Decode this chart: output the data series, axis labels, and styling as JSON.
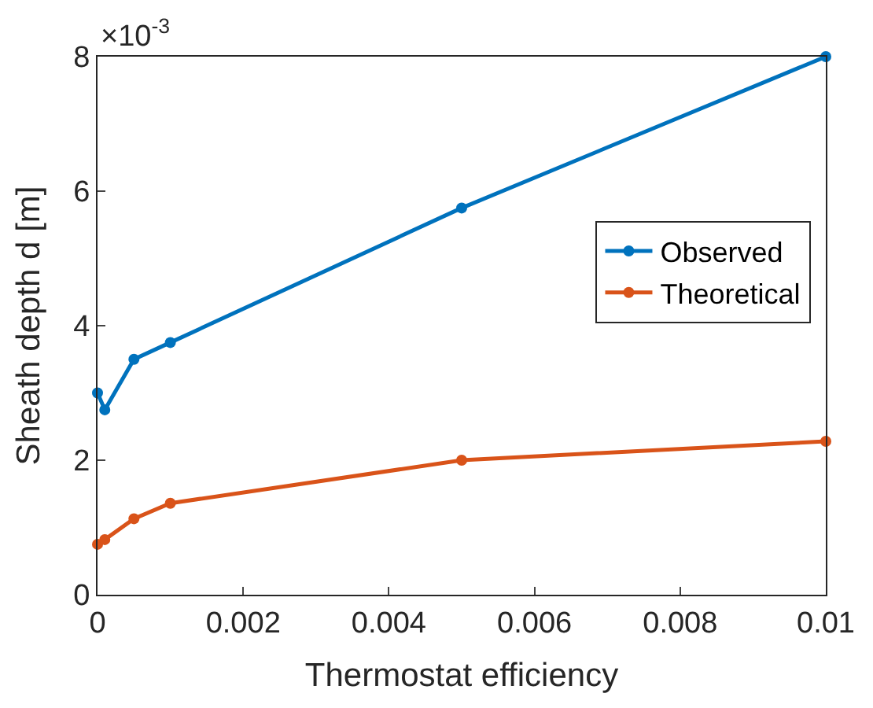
{
  "chart_data": {
    "type": "line",
    "xlabel": "Thermostat efficiency",
    "ylabel": "Sheath depth d [m]",
    "annotations": [
      "×10$^{-3}$"
    ],
    "series": [
      {
        "name": "Observed",
        "color": "#0072bd",
        "x": [
          0,
          0.0001,
          0.0005,
          0.001,
          0.005,
          0.01
        ],
        "values": [
          3.0,
          2.75,
          3.5,
          3.75,
          5.75,
          8.0
        ]
      },
      {
        "name": "Theoretical",
        "color": "#d95319",
        "x": [
          0,
          0.0001,
          0.0005,
          0.001,
          0.005,
          0.01
        ],
        "values": [
          0.75,
          0.82,
          1.13,
          1.36,
          2.0,
          2.28
        ]
      }
    ],
    "xlim": [
      0,
      0.01
    ],
    "xticks": [
      0,
      0.002,
      0.004,
      0.006,
      0.008,
      0.01
    ],
    "ylim": [
      0,
      8
    ],
    "yticks": [
      0,
      2,
      4,
      6,
      8
    ],
    "legend": "right",
    "marker": "circle",
    "line_style": "solid"
  }
}
